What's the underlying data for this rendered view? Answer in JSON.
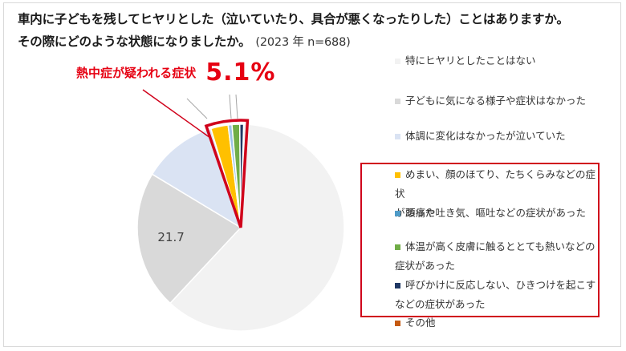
{
  "title": {
    "line1": "車内に子どもを残してヒヤリとした（泣いていたり、具合が悪くなったりした）ことはありますか。",
    "line2": "その際にどのような状態になりましたか。",
    "subtitle": "(2023 年 n=688)"
  },
  "callout": {
    "label": "熱中症が疑われる症状",
    "value": "5.1%"
  },
  "colors": {
    "callout": "#e60012",
    "highlight_border": "#d0021b"
  },
  "chart_data": {
    "type": "pie",
    "n": 688,
    "year": 2023,
    "slices": [
      {
        "label": "特にヒヤリとしたことはない",
        "value": 61.5,
        "color": "#f2f2f2",
        "data_label": ""
      },
      {
        "label": "子どもに気になる様子や症状はなかった",
        "value": 21.7,
        "color": "#d9d9d9",
        "data_label": "21.7"
      },
      {
        "label": "体調に変化はなかったが泣いていた",
        "value": 11.7,
        "color": "#dae3f3",
        "data_label": ""
      },
      {
        "label": "めまい、顔のほてり、たちくらみなどの症状があった",
        "value": 2.7,
        "color": "#ffc000",
        "data_label": ""
      },
      {
        "label": "頭痛や吐き気、嘔吐などの症状があった",
        "value": 0.6,
        "color": "#9dc3e6",
        "data_label": ""
      },
      {
        "label": "体温が高く皮膚に触るととても熱いなどの症状があった",
        "value": 1.2,
        "color": "#70ad47",
        "data_label": ""
      },
      {
        "label": "呼びかけに反応しない、ひきつけを起こすなどの症状があった",
        "value": 0.6,
        "color": "#203864",
        "data_label": ""
      },
      {
        "label": "その他",
        "value": 0.0,
        "color": "#c55a11",
        "data_label": ""
      }
    ],
    "highlighted_slices": [
      3,
      4,
      5,
      6
    ],
    "legend_position": "right"
  },
  "legend": [
    {
      "line1": "特にヒヤリとしたことはない",
      "line2": "",
      "color": "#f2f2f2"
    },
    {
      "line1": "子どもに気になる様子や症状はなかった",
      "line2": "",
      "color": "#d9d9d9"
    },
    {
      "line1": "体調に変化はなかったが泣いていた",
      "line2": "",
      "color": "#dae3f3"
    },
    {
      "line1": "めまい、顔のほてり、たちくらみなどの症状",
      "line2": "があった",
      "color": "#ffc000"
    },
    {
      "line1": "頭痛や吐き気、嘔吐などの症状があった",
      "line2": "",
      "color": "#4f9bc7"
    },
    {
      "line1": "体温が高く皮膚に触るととても熱いなどの",
      "line2": "症状があった",
      "color": "#70ad47"
    },
    {
      "line1": "呼びかけに反応しない、ひきつけを起こす",
      "line2": "などの症状があった",
      "color": "#203864"
    },
    {
      "line1": "その他",
      "line2": "",
      "color": "#c55a11"
    }
  ]
}
